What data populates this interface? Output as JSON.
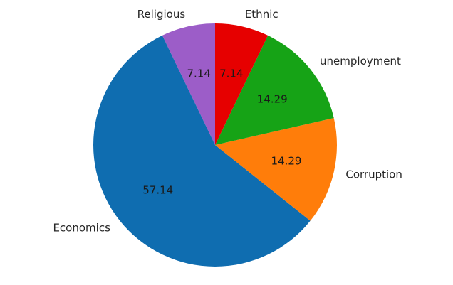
{
  "chart_data": {
    "type": "pie",
    "title": "",
    "start_angle_deg": 90,
    "direction": "counterclockwise",
    "slices": [
      {
        "label": "Religious",
        "value": 7.14,
        "display": "7.14",
        "color": "#9c5dc8"
      },
      {
        "label": "Economics",
        "value": 57.14,
        "display": "57.14",
        "color": "#0f6db0"
      },
      {
        "label": "Corruption",
        "value": 14.29,
        "display": "14.29",
        "color": "#ff7d0a"
      },
      {
        "label": "unemployment",
        "value": 14.29,
        "display": "14.29",
        "color": "#16a316"
      },
      {
        "label": "Ethnic",
        "value": 7.14,
        "display": "7.14",
        "color": "#e60000"
      }
    ]
  }
}
